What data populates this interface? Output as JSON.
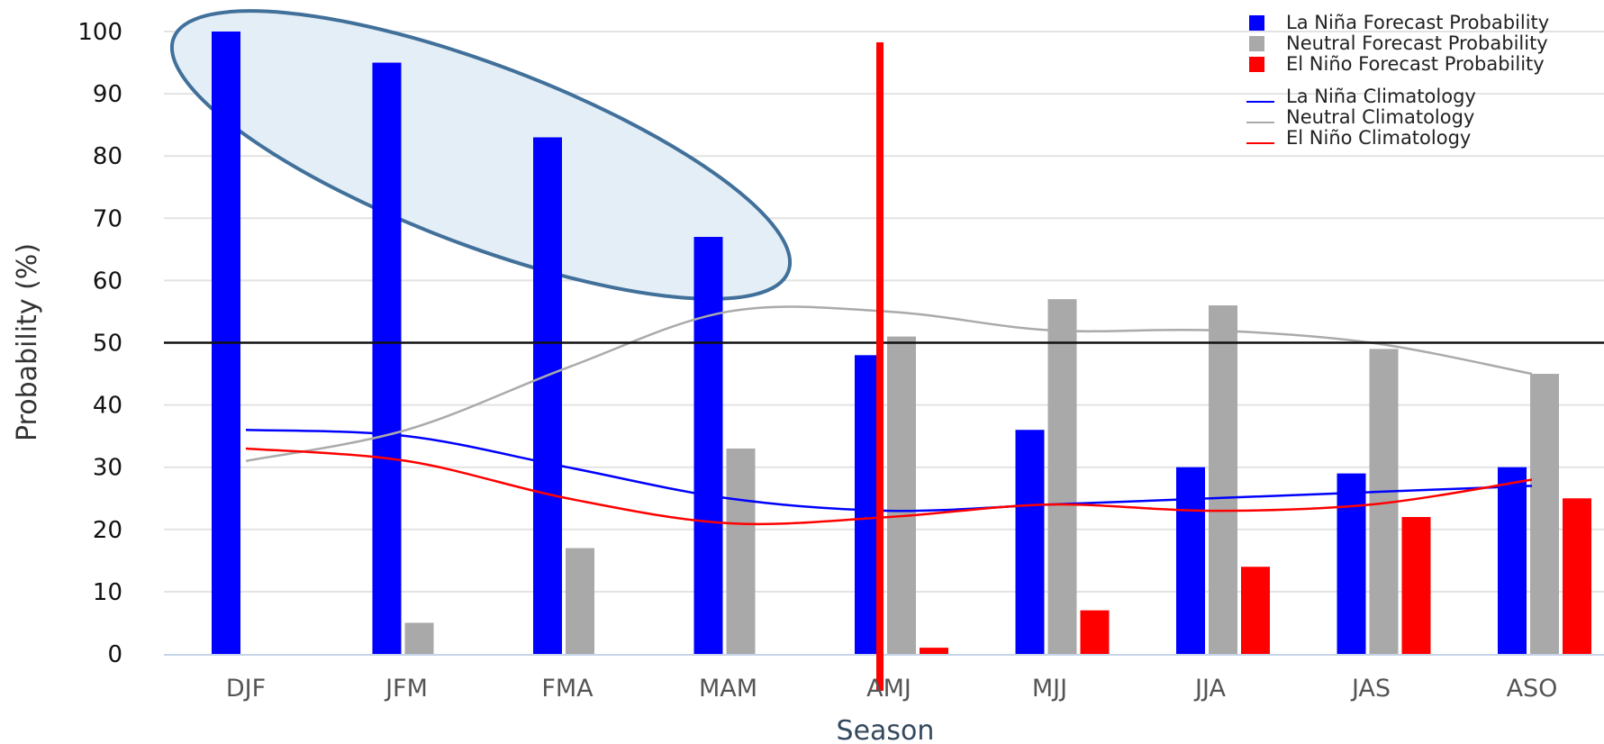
{
  "chart_data": {
    "type": "bar",
    "categories": [
      "DJF",
      "JFM",
      "FMA",
      "MAM",
      "AMJ",
      "MJJ",
      "JJA",
      "JAS",
      "ASO"
    ],
    "series": [
      {
        "name": "La Niña Forecast Probability",
        "color": "#0000ff",
        "values": [
          100,
          95,
          83,
          67,
          48,
          36,
          30,
          29,
          30
        ]
      },
      {
        "name": "Neutral Forecast Probability",
        "color": "#a9a9a9",
        "values": [
          0,
          5,
          17,
          33,
          51,
          57,
          56,
          49,
          45
        ]
      },
      {
        "name": "El Niño Forecast Probability",
        "color": "#ff0000",
        "values": [
          0,
          0,
          0,
          0,
          1,
          7,
          14,
          22,
          25
        ]
      }
    ],
    "climatology": [
      {
        "name": "La Niña Climatology",
        "color": "#0000ff",
        "values": [
          36,
          35,
          30,
          25,
          23,
          24,
          25,
          26,
          27
        ]
      },
      {
        "name": "Neutral Climatology",
        "color": "#aaaaaa",
        "values": [
          31,
          36,
          46,
          55,
          55,
          52,
          52,
          50,
          45
        ]
      },
      {
        "name": "El Niño Climatology",
        "color": "#ff0000",
        "values": [
          33,
          31,
          25,
          21,
          22,
          24,
          23,
          24,
          28
        ]
      }
    ],
    "xlabel": "Season",
    "ylabel": "Probability (%)",
    "ylim": [
      0,
      100
    ],
    "yticks": [
      0,
      10,
      20,
      30,
      40,
      50,
      60,
      70,
      80,
      90,
      100
    ],
    "reference_line": 50,
    "grid": true,
    "legend_position": "top-right",
    "annotations": {
      "vertical_marker": {
        "position_category": "AMJ",
        "color": "#ff0000"
      },
      "highlight_ellipse": {
        "categories": [
          "DJF",
          "JFM",
          "FMA",
          "MAM"
        ],
        "fill": "#e4eef6",
        "stroke": "#41709a"
      }
    }
  }
}
